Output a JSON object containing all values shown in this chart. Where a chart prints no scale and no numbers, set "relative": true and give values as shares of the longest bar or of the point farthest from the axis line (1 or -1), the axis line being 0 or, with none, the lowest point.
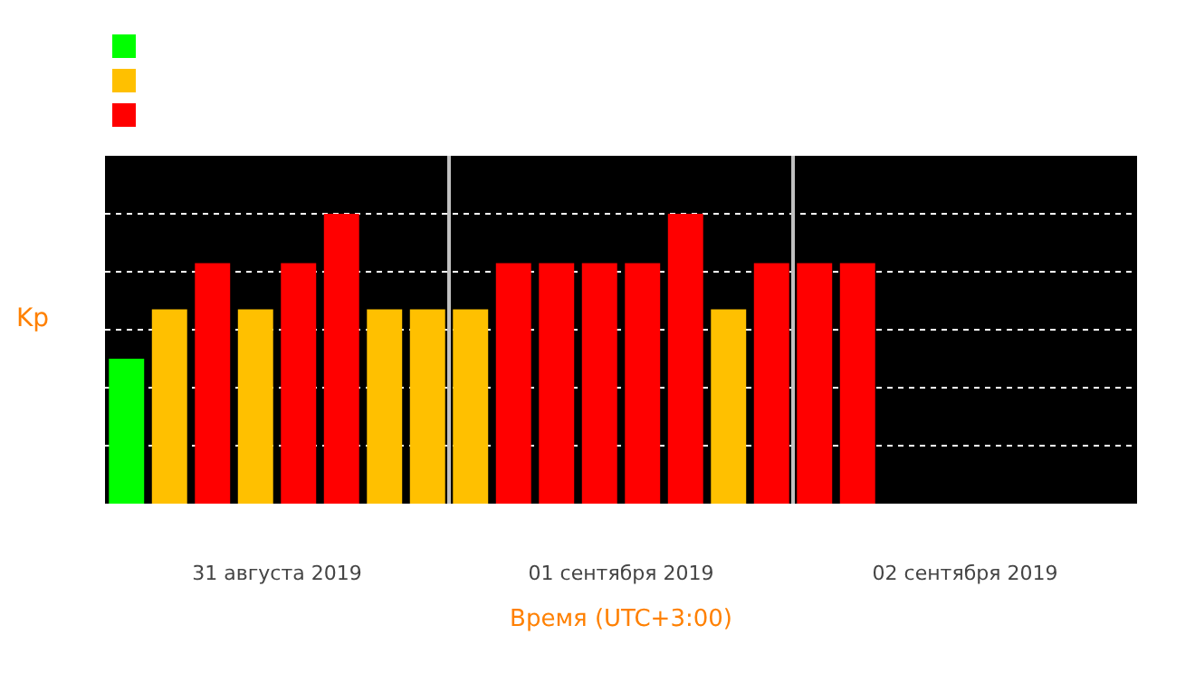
{
  "chart_data": {
    "type": "bar",
    "relative": true,
    "xlabel": "Время (UTC+3:00)",
    "ylabel": "Kp",
    "x": [
      "2019-08-31T01:30",
      "2019-08-31T04:30",
      "2019-08-31T07:30",
      "2019-08-31T10:30",
      "2019-08-31T13:30",
      "2019-08-31T16:30",
      "2019-08-31T19:30",
      "2019-08-31T22:30",
      "2019-09-01T01:30",
      "2019-09-01T04:30",
      "2019-09-01T07:30",
      "2019-09-01T10:30",
      "2019-09-01T13:30",
      "2019-09-01T16:30",
      "2019-09-01T19:30",
      "2019-09-01T22:30",
      "2019-09-02T01:30",
      "2019-09-02T04:30"
    ],
    "values": [
      0.5,
      0.67,
      0.83,
      0.67,
      0.83,
      1,
      0.67,
      0.67,
      0.67,
      0.83,
      0.83,
      0.83,
      0.83,
      1,
      0.67,
      0.83,
      0.83,
      0.83
    ],
    "colors": [
      "#00ff00",
      "#ffc000",
      "#ff0000",
      "#ffc000",
      "#ff0000",
      "#ff0000",
      "#ffc000",
      "#ffc000",
      "#ffc000",
      "#ff0000",
      "#ff0000",
      "#ff0000",
      "#ff0000",
      "#ff0000",
      "#ffc000",
      "#ff0000",
      "#ff0000",
      "#ff0000"
    ],
    "xlim": [
      "2019-08-31T00:00",
      "2019-09-03T00:00"
    ],
    "xticks": [
      {
        "value": "2019-08-31T12:00",
        "label": "31 августа 2019"
      },
      {
        "value": "2019-09-01T12:00",
        "label": "01 сентября 2019"
      },
      {
        "value": "2019-09-02T12:00",
        "label": "02 сентября 2019"
      }
    ],
    "ref_lines": [
      {
        "axis": "x",
        "value": "2019-09-01T00:00",
        "color": "#c0c0c0"
      },
      {
        "axis": "x",
        "value": "2019-09-02T00:00",
        "color": "#c0c0c0"
      }
    ],
    "grid": "y",
    "tick_labels": "x"
  }
}
